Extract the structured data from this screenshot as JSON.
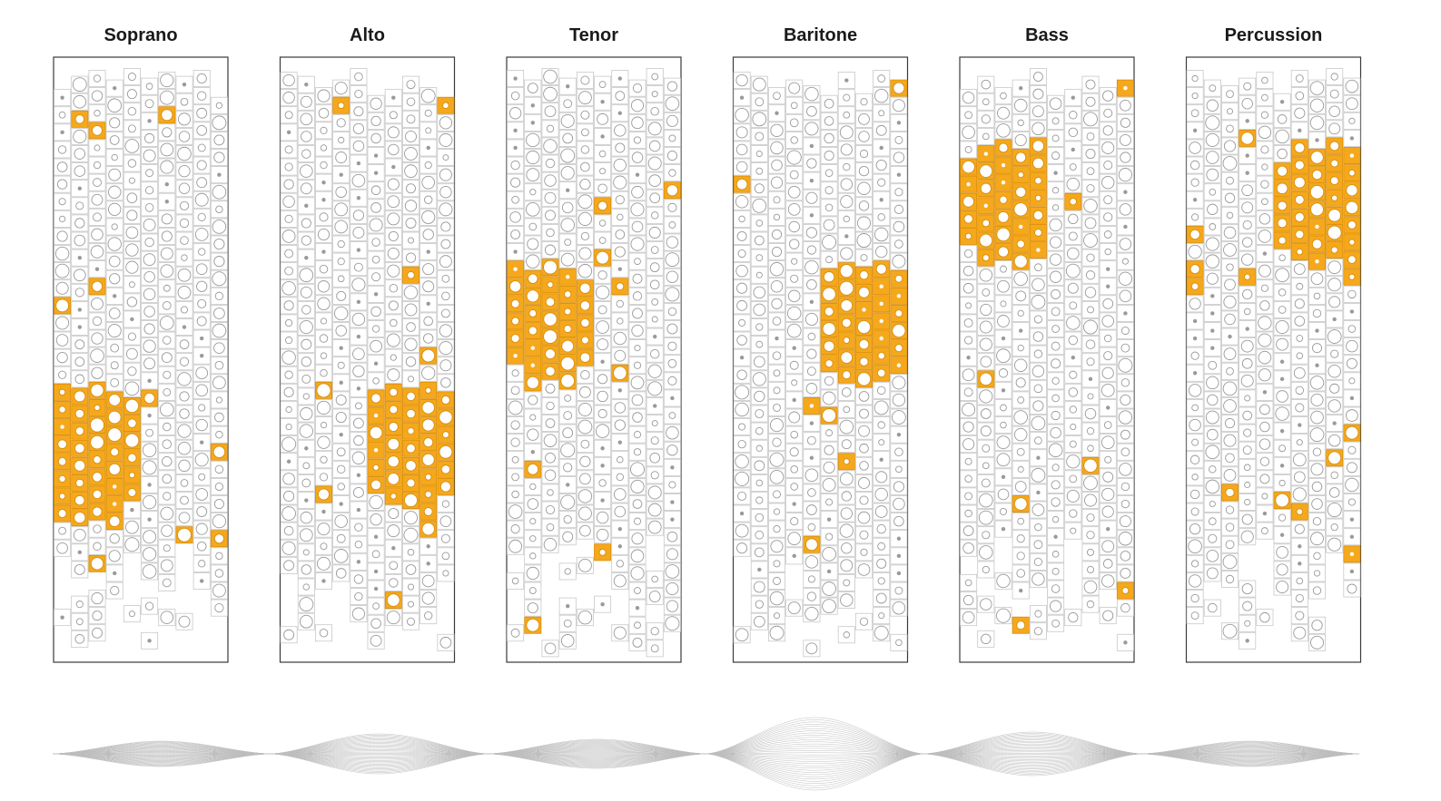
{
  "panels": [
    {
      "id": "soprano",
      "title": "Soprano",
      "block": {
        "c0": 0,
        "c1": 4,
        "r0": 18,
        "r1": 25
      },
      "seed": 11
    },
    {
      "id": "alto",
      "title": "Alto",
      "block": {
        "c0": 5,
        "c1": 9,
        "r0": 18,
        "r1": 24
      },
      "seed": 23
    },
    {
      "id": "tenor",
      "title": "Tenor",
      "block": {
        "c0": 0,
        "c1": 4,
        "r0": 11,
        "r1": 17
      },
      "seed": 37
    },
    {
      "id": "baritone",
      "title": "Baritone",
      "block": {
        "c0": 5,
        "c1": 9,
        "r0": 11,
        "r1": 17
      },
      "seed": 41
    },
    {
      "id": "bass",
      "title": "Bass",
      "block": {
        "c0": 0,
        "c1": 4,
        "r0": 4,
        "r1": 10
      },
      "seed": 53
    },
    {
      "id": "percussion",
      "title": "Percussion",
      "block": {
        "c0": 5,
        "c1": 9,
        "r0": 4,
        "r1": 10
      },
      "seed": 67
    }
  ],
  "waveform": {
    "segments": [
      {
        "amplitude": 0.35
      },
      {
        "amplitude": 0.55
      },
      {
        "amplitude": 0.4
      },
      {
        "amplitude": 1.0
      },
      {
        "amplitude": 0.6
      },
      {
        "amplitude": 0.35
      }
    ]
  },
  "colors": {
    "highlight": "#F5A81C",
    "highlight_stroke": "#D98E0A",
    "cell_stroke": "#c8c8c8",
    "circle_stroke": "#9a9a9a",
    "dot_fill": "#9a9a9a",
    "frame": "#3a3a3a",
    "title": "#1a1a1a",
    "wave": "#bdbdbd"
  }
}
